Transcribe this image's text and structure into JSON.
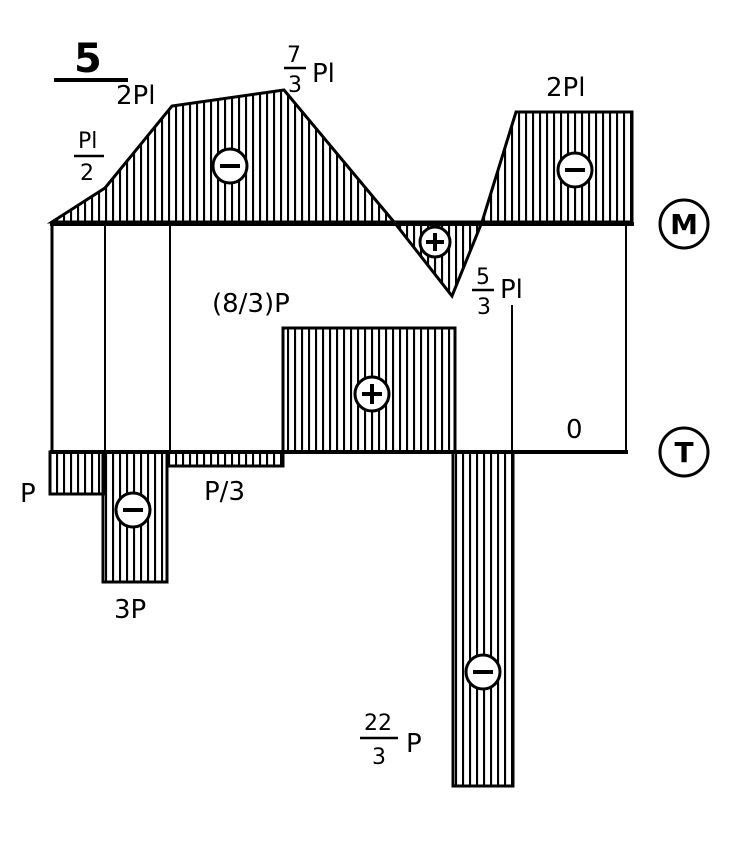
{
  "figure": {
    "number": "5"
  },
  "moment_diagram": {
    "label": "M",
    "values": {
      "left_start": "0",
      "first_node": {
        "num": "Pl",
        "den": "2"
      },
      "second_node": "2Pl",
      "third_node": {
        "num": "7",
        "den": "3",
        "unit": "Pl"
      },
      "min_node": {
        "num": "5",
        "den": "3",
        "unit": "Pl"
      },
      "right_segment": "2Pl"
    },
    "signs": {
      "left_region": "−",
      "middle_region": "+",
      "right_region": "−"
    }
  },
  "shear_diagram": {
    "label": "T",
    "values": {
      "first_segment": "P",
      "second_segment": "3P",
      "third_segment": "P/3",
      "fourth_segment": "(8/3)P",
      "fifth_segment": {
        "num": "22",
        "den": "3",
        "unit": "P"
      },
      "sixth_segment": "0"
    },
    "signs": {
      "second_region": "−",
      "fourth_region": "+",
      "fifth_region": "−"
    }
  },
  "colors": {
    "ink": "#000000",
    "paper": "#ffffff"
  }
}
